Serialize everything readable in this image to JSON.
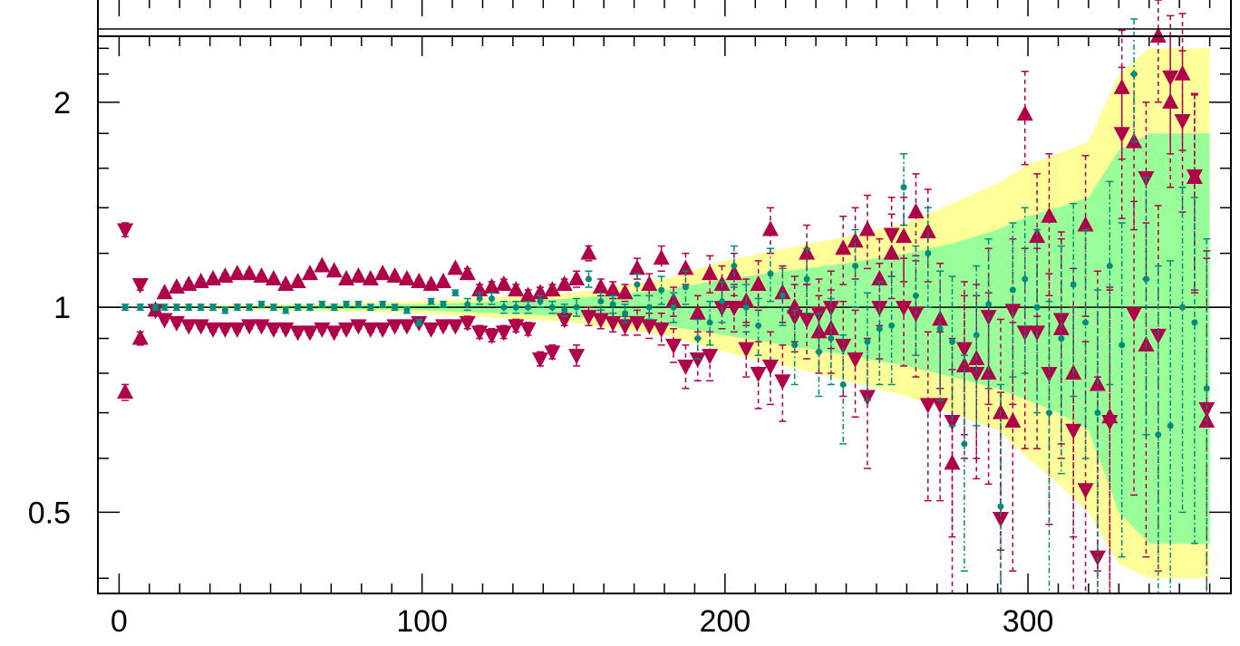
{
  "chart_data": {
    "type": "scatter",
    "title": "",
    "xlabel": "",
    "ylabel": "",
    "yscale": "log",
    "xlim": [
      -7,
      367
    ],
    "ylim": [
      0.38,
      2.5
    ],
    "x_ticks": [
      0,
      100,
      200,
      300
    ],
    "x_tick_labels": [
      "0",
      "100",
      "200",
      "300"
    ],
    "y_ticks": [
      0.5,
      1,
      2
    ],
    "y_tick_labels": [
      "0.5",
      "1",
      "2"
    ],
    "reference_line": 1,
    "grid": false,
    "legend": null,
    "bands": [
      {
        "color": "#ffff99",
        "x": [
          0,
          100,
          150,
          180,
          200,
          220,
          240,
          260,
          275,
          290,
          300,
          310,
          320,
          330,
          340,
          360
        ],
        "upper": [
          1.0,
          1.02,
          1.05,
          1.1,
          1.17,
          1.22,
          1.27,
          1.33,
          1.42,
          1.52,
          1.62,
          1.68,
          1.75,
          2.2,
          2.4,
          2.4
        ],
        "lower": [
          1.0,
          0.98,
          0.95,
          0.91,
          0.86,
          0.82,
          0.78,
          0.74,
          0.7,
          0.66,
          0.6,
          0.55,
          0.5,
          0.42,
          0.4,
          0.4
        ]
      },
      {
        "color": "#99ff99",
        "x": [
          0,
          100,
          150,
          180,
          200,
          220,
          240,
          260,
          275,
          290,
          300,
          310,
          320,
          330,
          340,
          360
        ],
        "upper": [
          1.0,
          1.01,
          1.03,
          1.06,
          1.1,
          1.13,
          1.16,
          1.2,
          1.24,
          1.3,
          1.36,
          1.4,
          1.45,
          1.7,
          1.8,
          1.8
        ],
        "lower": [
          1.0,
          0.99,
          0.97,
          0.94,
          0.91,
          0.88,
          0.85,
          0.82,
          0.79,
          0.76,
          0.73,
          0.7,
          0.66,
          0.5,
          0.45,
          0.45
        ]
      }
    ],
    "series": [
      {
        "marker": "triangle-up",
        "color": "#b0004a",
        "x": [
          2,
          7,
          12,
          15,
          19,
          23,
          27,
          31,
          35,
          39,
          43,
          47,
          51,
          55,
          59,
          63,
          67,
          71,
          75,
          79,
          83,
          87,
          91,
          95,
          99,
          103,
          107,
          111,
          115,
          119,
          123,
          127,
          131,
          135,
          139,
          143,
          147,
          151,
          155,
          159,
          163,
          167,
          171,
          175,
          179,
          183,
          187,
          191,
          195,
          199,
          203,
          207,
          211,
          215,
          219,
          223,
          227,
          231,
          235,
          239,
          243,
          247,
          251,
          255,
          259,
          263,
          267,
          271,
          275,
          279,
          283,
          287,
          291,
          295,
          299,
          303,
          307,
          311,
          315,
          319,
          323,
          327,
          331,
          335,
          339,
          343,
          347,
          351,
          355,
          359
        ],
        "y": [
          0.75,
          0.9,
          0.99,
          1.05,
          1.07,
          1.08,
          1.09,
          1.1,
          1.11,
          1.12,
          1.12,
          1.11,
          1.1,
          1.08,
          1.09,
          1.12,
          1.15,
          1.13,
          1.1,
          1.11,
          1.1,
          1.12,
          1.11,
          1.1,
          1.09,
          1.08,
          1.09,
          1.14,
          1.12,
          1.06,
          1.07,
          1.08,
          1.06,
          1.04,
          1.05,
          1.06,
          1.08,
          1.1,
          1.2,
          1.07,
          1.06,
          1.05,
          1.14,
          1.08,
          1.18,
          1.02,
          1.14,
          0.98,
          1.12,
          1.08,
          1.12,
          1.02,
          1.08,
          1.3,
          1.05,
          1.0,
          1.2,
          0.92,
          0.93,
          1.22,
          1.25,
          1.3,
          1.1,
          1.2,
          1.27,
          1.38,
          1.29,
          0.96,
          0.59,
          0.82,
          0.84,
          0.8,
          0.7,
          0.68,
          1.92,
          1.27,
          1.36,
          0.93,
          0.8,
          1.32,
          0.77,
          0.69,
          2.1,
          1.75,
          0.88,
          2.5,
          2.0,
          2.2,
          1.55,
          0.68
        ],
        "yerr": [
          0.02,
          0.02,
          0.01,
          0.01,
          0.01,
          0.01,
          0.01,
          0.01,
          0.01,
          0.01,
          0.01,
          0.01,
          0.01,
          0.01,
          0.01,
          0.01,
          0.01,
          0.01,
          0.01,
          0.01,
          0.01,
          0.01,
          0.01,
          0.01,
          0.01,
          0.01,
          0.01,
          0.01,
          0.02,
          0.02,
          0.02,
          0.02,
          0.02,
          0.02,
          0.02,
          0.02,
          0.02,
          0.03,
          0.03,
          0.03,
          0.03,
          0.03,
          0.04,
          0.04,
          0.05,
          0.05,
          0.06,
          0.06,
          0.07,
          0.07,
          0.08,
          0.08,
          0.09,
          0.1,
          0.1,
          0.11,
          0.12,
          0.12,
          0.13,
          0.14,
          0.15,
          0.16,
          0.16,
          0.17,
          0.18,
          0.19,
          0.2,
          0.2,
          0.22,
          0.22,
          0.24,
          0.25,
          0.26,
          0.27,
          0.3,
          0.3,
          0.32,
          0.33,
          0.34,
          0.35,
          0.36,
          0.38,
          0.45,
          0.45,
          0.45,
          0.5,
          0.5,
          0.5,
          0.5,
          0.5
        ]
      },
      {
        "marker": "triangle-down",
        "color": "#b0004a",
        "x": [
          2,
          7,
          12,
          15,
          19,
          23,
          27,
          31,
          35,
          39,
          43,
          47,
          51,
          55,
          59,
          63,
          67,
          71,
          75,
          79,
          83,
          87,
          91,
          95,
          99,
          103,
          107,
          111,
          115,
          119,
          123,
          127,
          131,
          135,
          139,
          143,
          147,
          151,
          155,
          159,
          163,
          167,
          171,
          175,
          179,
          183,
          187,
          191,
          195,
          199,
          203,
          207,
          211,
          215,
          219,
          223,
          227,
          231,
          235,
          239,
          243,
          247,
          251,
          255,
          259,
          263,
          267,
          271,
          275,
          279,
          283,
          287,
          291,
          295,
          299,
          303,
          307,
          311,
          315,
          319,
          323,
          327,
          331,
          335,
          339,
          343,
          347,
          351,
          355,
          359
        ],
        "y": [
          1.3,
          1.08,
          0.99,
          0.96,
          0.95,
          0.94,
          0.94,
          0.93,
          0.93,
          0.93,
          0.94,
          0.94,
          0.93,
          0.93,
          0.92,
          0.92,
          0.93,
          0.92,
          0.93,
          0.94,
          0.93,
          0.93,
          0.94,
          0.94,
          0.95,
          0.93,
          0.94,
          0.94,
          0.95,
          0.92,
          0.91,
          0.92,
          0.94,
          0.93,
          0.84,
          0.86,
          0.96,
          0.85,
          0.97,
          0.96,
          0.95,
          0.94,
          0.95,
          0.94,
          0.93,
          0.88,
          0.82,
          0.84,
          0.85,
          1.0,
          1.0,
          0.87,
          0.8,
          0.82,
          0.78,
          0.97,
          0.96,
          0.98,
          1.0,
          0.88,
          0.84,
          0.74,
          1.0,
          1.28,
          1.0,
          0.98,
          0.72,
          0.72,
          0.68,
          0.87,
          0.8,
          0.97,
          0.49,
          0.99,
          0.92,
          0.92,
          0.8,
          0.96,
          0.66,
          0.54,
          0.43,
          0.68,
          1.8,
          0.98,
          1.55,
          0.91,
          2.18,
          1.88,
          1.56,
          0.71
        ],
        "yerr": [
          0.03,
          0.02,
          0.01,
          0.01,
          0.01,
          0.01,
          0.01,
          0.01,
          0.01,
          0.01,
          0.01,
          0.01,
          0.01,
          0.01,
          0.01,
          0.01,
          0.01,
          0.01,
          0.01,
          0.01,
          0.01,
          0.01,
          0.01,
          0.01,
          0.01,
          0.01,
          0.01,
          0.01,
          0.02,
          0.02,
          0.02,
          0.02,
          0.02,
          0.02,
          0.02,
          0.02,
          0.02,
          0.03,
          0.03,
          0.03,
          0.03,
          0.03,
          0.04,
          0.04,
          0.05,
          0.05,
          0.06,
          0.06,
          0.07,
          0.07,
          0.08,
          0.08,
          0.09,
          0.1,
          0.1,
          0.11,
          0.12,
          0.12,
          0.13,
          0.14,
          0.15,
          0.16,
          0.16,
          0.17,
          0.18,
          0.19,
          0.2,
          0.2,
          0.22,
          0.22,
          0.24,
          0.25,
          0.26,
          0.27,
          0.3,
          0.3,
          0.32,
          0.33,
          0.34,
          0.35,
          0.36,
          0.38,
          0.45,
          0.45,
          0.45,
          0.5,
          0.5,
          0.5,
          0.5,
          0.5
        ]
      },
      {
        "marker": "circle",
        "color": "#008b7a",
        "x": [
          2,
          7,
          12,
          15,
          19,
          23,
          27,
          31,
          35,
          39,
          43,
          47,
          51,
          55,
          59,
          63,
          67,
          71,
          75,
          79,
          83,
          87,
          91,
          95,
          99,
          103,
          107,
          111,
          115,
          119,
          123,
          127,
          131,
          135,
          139,
          143,
          147,
          151,
          155,
          159,
          163,
          167,
          171,
          175,
          179,
          183,
          187,
          191,
          195,
          199,
          203,
          207,
          211,
          215,
          219,
          223,
          227,
          231,
          235,
          239,
          243,
          247,
          251,
          255,
          259,
          263,
          267,
          271,
          275,
          279,
          283,
          287,
          291,
          295,
          299,
          303,
          307,
          311,
          315,
          319,
          323,
          327,
          331,
          335,
          339,
          343,
          347,
          351,
          355,
          359
        ],
        "y": [
          1.0,
          1.0,
          1.0,
          1.0,
          1.0,
          1.0,
          1.0,
          1.0,
          0.99,
          1.0,
          1.0,
          1.01,
          1.0,
          0.99,
          1.0,
          1.0,
          1.01,
          1.0,
          1.01,
          1.01,
          1.0,
          1.01,
          1.0,
          0.99,
          0.95,
          1.02,
          1.01,
          1.05,
          1.01,
          1.03,
          1.03,
          1.0,
          1.0,
          1.0,
          1.02,
          1.0,
          0.99,
          1.0,
          1.1,
          1.02,
          1.01,
          0.98,
          1.08,
          1.0,
          1.06,
          1.0,
          1.07,
          0.9,
          0.95,
          1.02,
          1.15,
          1.0,
          0.94,
          1.12,
          1.04,
          0.88,
          1.1,
          0.86,
          0.9,
          0.77,
          1.15,
          0.89,
          0.93,
          0.94,
          1.5,
          1.04,
          1.2,
          0.93,
          0.89,
          0.63,
          0.91,
          1.01,
          0.51,
          1.06,
          1.1,
          1.0,
          0.7,
          0.9,
          1.08,
          0.95,
          0.7,
          1.15,
          0.88,
          2.2,
          1.1,
          0.65,
          0.67,
          1.0,
          0.95,
          0.76
        ],
        "yerr": [
          0.01,
          0.01,
          0.01,
          0.01,
          0.01,
          0.01,
          0.01,
          0.01,
          0.01,
          0.01,
          0.01,
          0.01,
          0.01,
          0.01,
          0.01,
          0.01,
          0.01,
          0.01,
          0.01,
          0.01,
          0.01,
          0.01,
          0.01,
          0.01,
          0.01,
          0.01,
          0.01,
          0.01,
          0.02,
          0.02,
          0.02,
          0.02,
          0.02,
          0.02,
          0.02,
          0.02,
          0.02,
          0.03,
          0.03,
          0.03,
          0.03,
          0.03,
          0.04,
          0.04,
          0.05,
          0.05,
          0.06,
          0.06,
          0.07,
          0.07,
          0.08,
          0.08,
          0.09,
          0.1,
          0.1,
          0.11,
          0.12,
          0.12,
          0.13,
          0.14,
          0.15,
          0.16,
          0.16,
          0.17,
          0.18,
          0.19,
          0.2,
          0.2,
          0.22,
          0.22,
          0.24,
          0.25,
          0.26,
          0.27,
          0.3,
          0.3,
          0.32,
          0.33,
          0.34,
          0.35,
          0.36,
          0.38,
          0.45,
          0.45,
          0.45,
          0.5,
          0.5,
          0.5,
          0.5,
          0.5
        ]
      }
    ]
  }
}
